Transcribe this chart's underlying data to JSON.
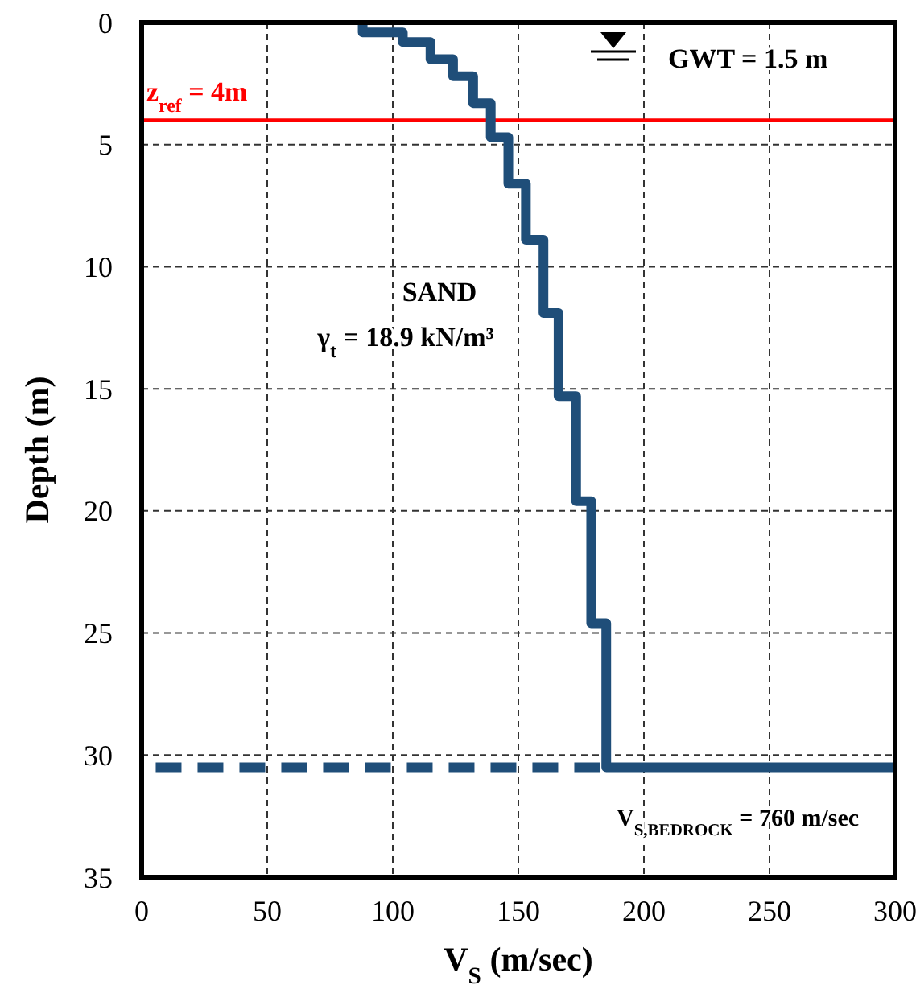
{
  "chart_data": {
    "type": "line",
    "xlabel": "V$_{S}$ (m/sec)",
    "ylabel": "Depth (m)",
    "xlim": [
      0,
      300
    ],
    "xticks": [
      0,
      50,
      100,
      150,
      200,
      250,
      300
    ],
    "ylim": [
      35,
      0
    ],
    "yticks": [
      0,
      5,
      10,
      15,
      20,
      25,
      30,
      35
    ],
    "grid": true,
    "series": [
      {
        "color": "#1f4e79",
        "line_style": "solid",
        "x": [
          88,
          88,
          104,
          104,
          115,
          115,
          124,
          124,
          132,
          132,
          139,
          139,
          146,
          146,
          153,
          153,
          160,
          160,
          166,
          166,
          173,
          173,
          179,
          179,
          185,
          185,
          300
        ],
        "values": [
          0,
          0.4,
          0.4,
          0.8,
          0.8,
          1.5,
          1.5,
          2.2,
          2.2,
          3.3,
          3.3,
          4.7,
          4.7,
          6.6,
          6.6,
          8.9,
          8.9,
          11.9,
          11.9,
          15.3,
          15.3,
          19.6,
          19.6,
          24.6,
          24.6,
          30.5,
          30.5
        ]
      },
      {
        "color": "#1f4e79",
        "line_style": "dashed",
        "x": [
          5.6,
          185
        ],
        "values": [
          30.5,
          30.5
        ]
      }
    ],
    "ref_lines": [
      {
        "axis": "y",
        "value": 4,
        "label": "z$_{ref}$ = 4m",
        "color": "#ff0000",
        "line_style": "solid"
      }
    ],
    "annotations": [
      "GWT = 1.5 m",
      "SAND",
      "γ$_{t}$ = 18.9 kN/m³",
      "V$_{S,BEDROCK}$ = 760 m/sec"
    ]
  }
}
